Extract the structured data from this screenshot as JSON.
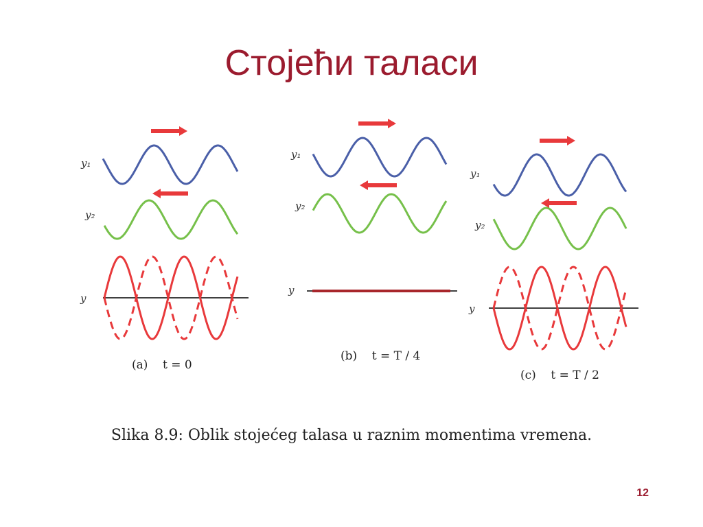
{
  "slide": {
    "title": "Стојећи таласи",
    "caption": "Slika 8.9: Oblik stojećeg talasa u raznim momentima vremena.",
    "page_number": "12"
  },
  "colors": {
    "title": "#9b1b2e",
    "y1_wave": "#4a5fa8",
    "y2_wave": "#76c04a",
    "resultant_wave": "#e8393b",
    "flat_line": "#a8262b",
    "arrow": "#e8393b",
    "axis": "#000000"
  },
  "panels": [
    {
      "id": "a",
      "y1_label": "y₁",
      "y2_label": "y₂",
      "y_label": "y",
      "y1_direction": "right",
      "y2_direction": "left",
      "resultant": "standing-oscillation",
      "subcaption": "(a)    t = 0"
    },
    {
      "id": "b",
      "y1_label": "y₁",
      "y2_label": "y₂",
      "y_label": "y",
      "y1_direction": "right",
      "y2_direction": "left",
      "resultant": "flat",
      "subcaption": "(b)    t = T / 4"
    },
    {
      "id": "c",
      "y1_label": "y₁",
      "y2_label": "y₂",
      "y_label": "y",
      "y1_direction": "right",
      "y2_direction": "left",
      "resultant": "standing-oscillation",
      "subcaption": "(c)    t = T / 2"
    }
  ]
}
